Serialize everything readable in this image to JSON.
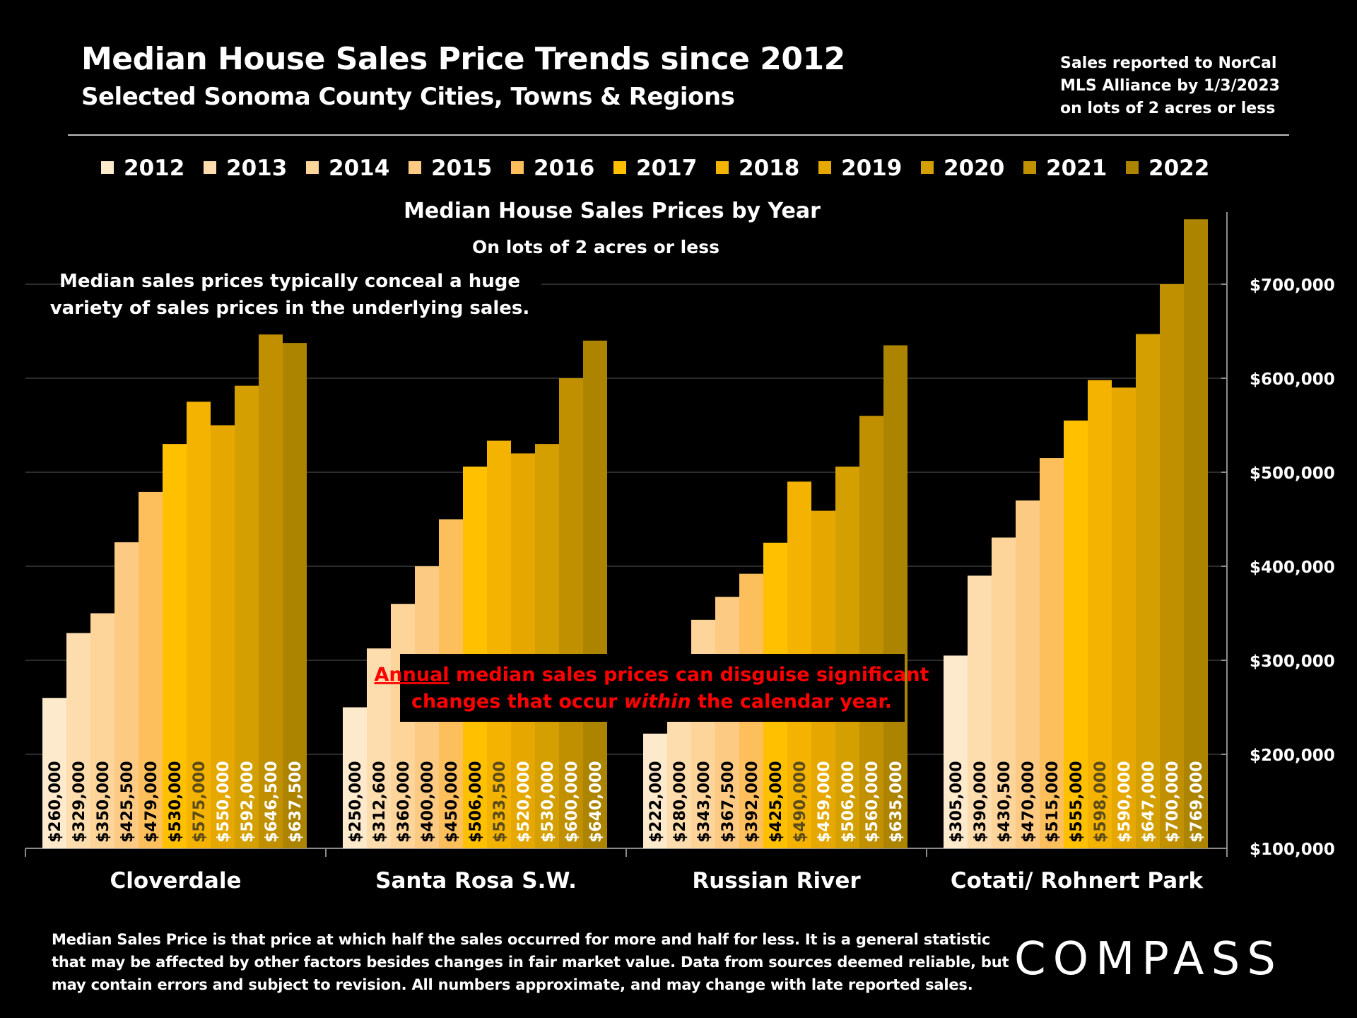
{
  "header": {
    "title": "Median House Sales Price Trends since 2012",
    "subtitle": "Selected Sonoma County Cities, Towns & Regions",
    "source_lines": [
      "Sales reported to NorCal",
      "MLS Alliance by 1/3/2023",
      "on lots of 2 acres or less"
    ]
  },
  "annotations": {
    "variety_line1": "Median sales prices typically conceal a huge",
    "variety_line2": "variety of sales prices in the underlying sales.",
    "box_line1_underlined": "Annual",
    "box_line1_rest": " median sales prices can disguise significant",
    "box_line2_before": "changes that occur ",
    "box_line2_italic": "within",
    "box_line2_after": " the calendar year."
  },
  "footnote": {
    "lines": [
      "Median Sales Price is that price at which half the sales occurred for more and half for less. It is a general statistic",
      "that may be affected by other factors besides changes in fair market value. Data from sources deemed reliable, but",
      "may contain errors and subject to revision.  All numbers approximate, and may change with late reported sales."
    ]
  },
  "logo": {
    "text": "COMPASS"
  },
  "colors": {
    "background": "#000000",
    "annotation_red": "#ff0000",
    "series": [
      "#fde9cb",
      "#fddcae",
      "#fdd49a",
      "#fdca83",
      "#fdbf5c",
      "#ffc000",
      "#f3b300",
      "#e6a800",
      "#d49f00",
      "#c19000",
      "#ad8400"
    ]
  },
  "chart_data": {
    "type": "bar",
    "title": "Median House Sales Prices by Year",
    "subtitle": "On lots of 2 acres or less",
    "categories": [
      "Cloverdale",
      "Santa Rosa S.W.",
      "Russian River",
      "Cotati/ Rohnert Park"
    ],
    "ylim": [
      100000,
      770000
    ],
    "yticks": [
      "$100,000",
      "$200,000",
      "$300,000",
      "$400,000",
      "$500,000",
      "$600,000",
      "$700,000"
    ],
    "ytick_values": [
      100000,
      200000,
      300000,
      400000,
      500000,
      600000,
      700000
    ],
    "y_axis_side": "right",
    "legend_position": "top",
    "grid": true,
    "series": [
      {
        "name": "2012",
        "values": [
          260000,
          250000,
          222000,
          305000
        ],
        "labels": [
          "$260,000",
          "$250,000",
          "$222,000",
          "$305,000"
        ]
      },
      {
        "name": "2013",
        "values": [
          329000,
          312600,
          280000,
          390000
        ],
        "labels": [
          "$329,000",
          "$312,600",
          "$280,000",
          "$390,000"
        ]
      },
      {
        "name": "2014",
        "values": [
          350000,
          360000,
          343000,
          430500
        ],
        "labels": [
          "$350,000",
          "$360,000",
          "$343,000",
          "$430,500"
        ]
      },
      {
        "name": "2015",
        "values": [
          425500,
          400000,
          367500,
          470000
        ],
        "labels": [
          "$425,500",
          "$400,000",
          "$367,500",
          "$470,000"
        ]
      },
      {
        "name": "2016",
        "values": [
          479000,
          450000,
          392000,
          515000
        ],
        "labels": [
          "$479,000",
          "$450,000",
          "$392,000",
          "$515,000"
        ]
      },
      {
        "name": "2017",
        "values": [
          530000,
          506000,
          425000,
          555000
        ],
        "labels": [
          "$530,000",
          "$506,000",
          "$425,000",
          "$555,000"
        ]
      },
      {
        "name": "2018",
        "values": [
          575000,
          533500,
          490000,
          598000
        ],
        "labels": [
          "$575,000",
          "$533,500",
          "$490,000",
          "$598,000"
        ]
      },
      {
        "name": "2019",
        "values": [
          550000,
          520000,
          459000,
          590000
        ],
        "labels": [
          "$550,000",
          "$520,000",
          "$459,000",
          "$590,000"
        ]
      },
      {
        "name": "2020",
        "values": [
          592000,
          530000,
          506000,
          647000
        ],
        "labels": [
          "$592,000",
          "$530,000",
          "$506,000",
          "$647,000"
        ]
      },
      {
        "name": "2021",
        "values": [
          646500,
          600000,
          560000,
          700000
        ],
        "labels": [
          "$646,500",
          "$600,000",
          "$560,000",
          "$700,000"
        ]
      },
      {
        "name": "2022",
        "values": [
          637500,
          640000,
          635000,
          769000
        ],
        "labels": [
          "$637,500",
          "$640,000",
          "$635,000",
          "$769,000"
        ]
      }
    ]
  }
}
